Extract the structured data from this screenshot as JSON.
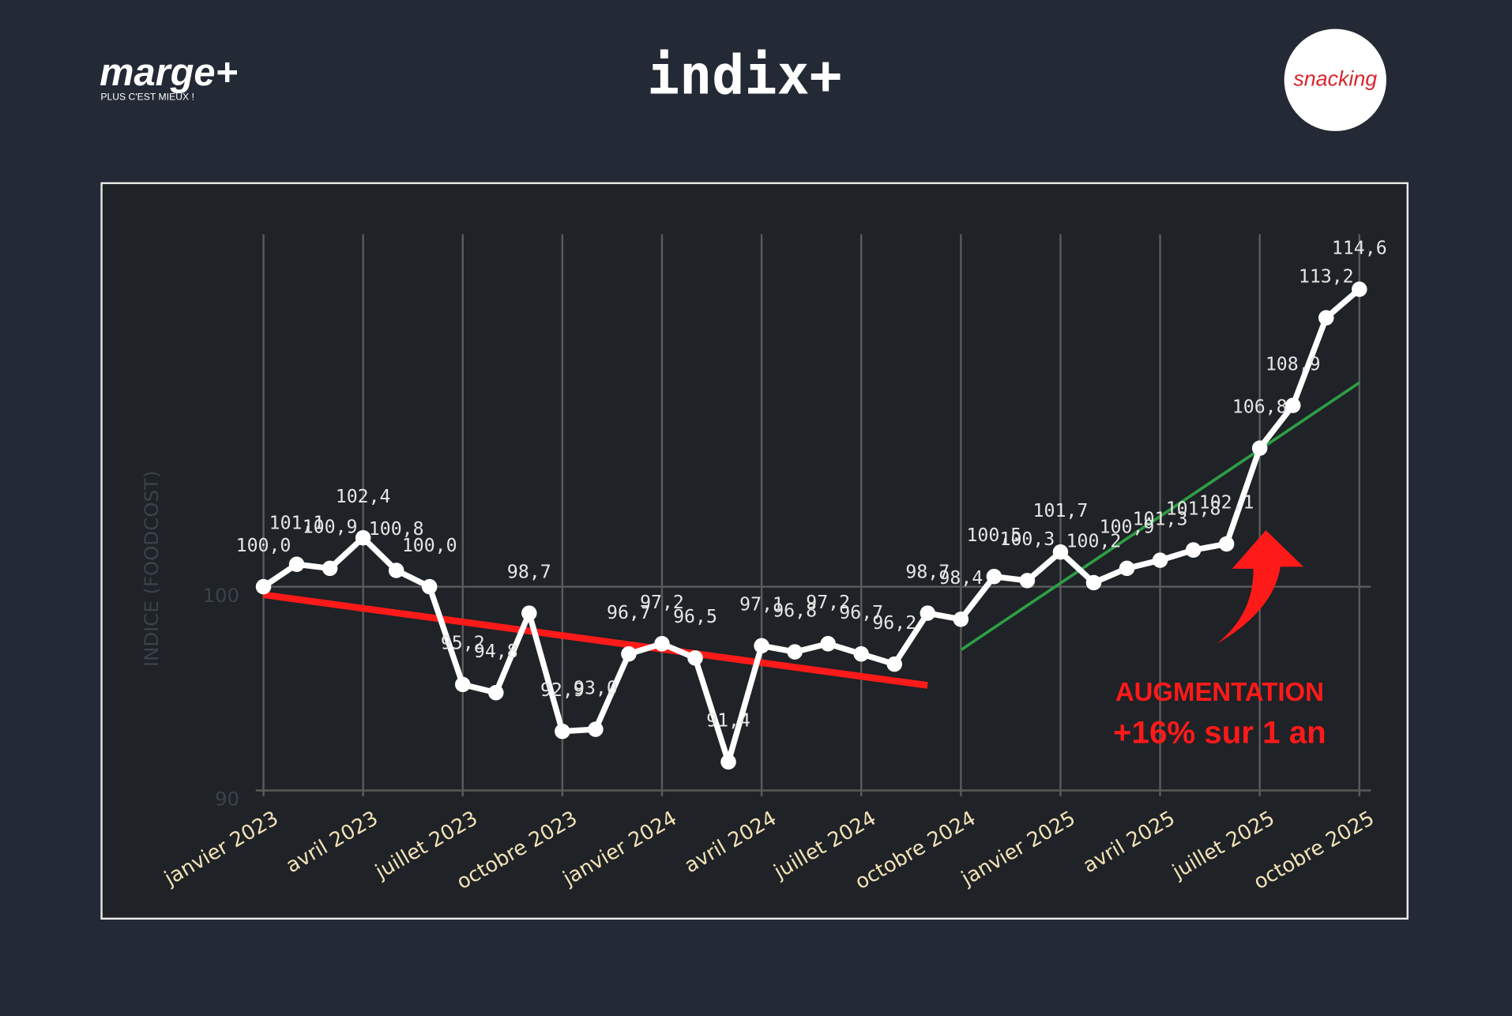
{
  "logos": {
    "left": "marge+",
    "left_tagline": "PLUS C'EST MIEUX !",
    "center": "indix+",
    "right": "snacking"
  },
  "chart_data": {
    "type": "line",
    "y_label": "INDICE (FOODCOST)",
    "categories": [
      "janvier 2023",
      null,
      null,
      "avril 2023",
      null,
      null,
      "juillet 2023",
      null,
      null,
      "octobre 2023",
      null,
      null,
      "janvier 2024",
      null,
      null,
      "avril 2024",
      null,
      null,
      "juillet 2024",
      null,
      null,
      "octobre 2024",
      null,
      null,
      "janvier 2025",
      null,
      null,
      "avril 2025",
      null,
      null,
      "juillet 2025",
      null,
      null,
      "octobre 2025"
    ],
    "values": [
      100.0,
      101.1,
      100.9,
      102.4,
      100.8,
      100.0,
      95.2,
      94.8,
      98.7,
      92.9,
      93.0,
      96.7,
      97.2,
      96.5,
      91.4,
      97.1,
      96.8,
      97.2,
      96.7,
      96.2,
      98.7,
      98.4,
      100.5,
      100.3,
      101.7,
      100.2,
      100.9,
      101.3,
      101.8,
      102.1,
      106.8,
      108.9,
      113.2,
      114.6
    ],
    "value_labels": [
      "100,0",
      "101,1",
      "100,9",
      "102,4",
      "100,8",
      "100,0",
      "95,2",
      "94,8",
      "98,7",
      "92,9",
      "93,0",
      "96,7",
      "97,2",
      "96,5",
      "91,4",
      "97,1",
      "96,8",
      "97,2",
      "96,7",
      "96,2",
      "98,7",
      "98,4",
      "100,5",
      "100,3",
      "101,7",
      "100,2",
      "100,9",
      "101,3",
      "101,8",
      "102,1",
      "106,8",
      "108,9",
      "113,2",
      "114,6"
    ],
    "color": "#ffffff",
    "ylim": [
      90,
      117.3
    ],
    "yticks": [
      90,
      100
    ],
    "grid": true,
    "annotations": [
      "AUGMENTATION",
      "+16% sur 1 an"
    ]
  }
}
